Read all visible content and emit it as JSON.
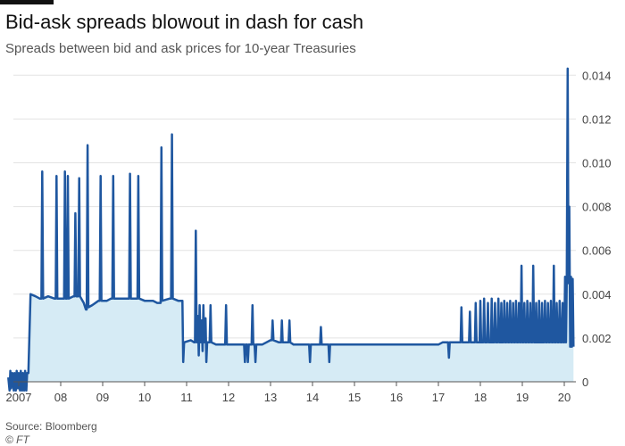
{
  "header": {
    "title": "Bid-ask spreads blowout in dash for cash",
    "subtitle": "Spreads between bid and ask prices for 10-year Treasuries"
  },
  "footer": {
    "source": "Source: Bloomberg",
    "copyright": "© FT"
  },
  "colors": {
    "line": "#1f57a0",
    "fill": "#d6ebf5",
    "grid": "#e3e3e3",
    "axis": "#555555"
  },
  "chart_data": {
    "type": "line",
    "title": "Bid-ask spreads blowout in dash for cash",
    "subtitle": "Spreads between bid and ask prices for 10-year Treasuries",
    "xlabel": "",
    "ylabel": "",
    "y_axis_position": "right",
    "grid": true,
    "legend": "none",
    "xlim": [
      2007.0,
      2020.3
    ],
    "ylim": [
      0,
      0.0145
    ],
    "x_ticks": [
      {
        "x": 2007.0,
        "label": "2007"
      },
      {
        "x": 2008.0,
        "label": "08"
      },
      {
        "x": 2009.0,
        "label": "09"
      },
      {
        "x": 2010.0,
        "label": "10"
      },
      {
        "x": 2011.0,
        "label": "11"
      },
      {
        "x": 2012.0,
        "label": "12"
      },
      {
        "x": 2013.0,
        "label": "13"
      },
      {
        "x": 2014.0,
        "label": "14"
      },
      {
        "x": 2015.0,
        "label": "15"
      },
      {
        "x": 2016.0,
        "label": "16"
      },
      {
        "x": 2017.0,
        "label": "17"
      },
      {
        "x": 2018.0,
        "label": "18"
      },
      {
        "x": 2019.0,
        "label": "19"
      },
      {
        "x": 2020.0,
        "label": "20"
      }
    ],
    "y_ticks": [
      {
        "y": 0,
        "label": "0"
      },
      {
        "y": 0.002,
        "label": "0.002"
      },
      {
        "y": 0.004,
        "label": "0.004"
      },
      {
        "y": 0.006,
        "label": "0.006"
      },
      {
        "y": 0.008,
        "label": "0.008"
      },
      {
        "y": 0.01,
        "label": "0.010"
      },
      {
        "y": 0.012,
        "label": "0.012"
      },
      {
        "y": 0.014,
        "label": "0.014"
      }
    ],
    "series": [
      {
        "name": "",
        "points": [
          [
            2006.75,
            0.0002
          ],
          [
            2006.78,
            -0.0004
          ],
          [
            2006.8,
            0.0005
          ],
          [
            2006.82,
            -0.0003
          ],
          [
            2006.85,
            0.0004
          ],
          [
            2006.88,
            -0.0004
          ],
          [
            2006.9,
            0.0004
          ],
          [
            2006.93,
            -0.0004
          ],
          [
            2006.95,
            0.0005
          ],
          [
            2006.98,
            -0.0003
          ],
          [
            2007.0,
            0.0004
          ],
          [
            2007.03,
            -0.0004
          ],
          [
            2007.05,
            0.0005
          ],
          [
            2007.08,
            -0.0004
          ],
          [
            2007.1,
            0.0004
          ],
          [
            2007.13,
            -0.0004
          ],
          [
            2007.15,
            0.0005
          ],
          [
            2007.18,
            -0.0004
          ],
          [
            2007.2,
            0.0004
          ],
          [
            2007.23,
            0.0004
          ],
          [
            2007.28,
            0.004
          ],
          [
            2007.4,
            0.0039
          ],
          [
            2007.5,
            0.0038
          ],
          [
            2007.54,
            0.0038
          ],
          [
            2007.56,
            0.0096
          ],
          [
            2007.58,
            0.0038
          ],
          [
            2007.7,
            0.0039
          ],
          [
            2007.85,
            0.0038
          ],
          [
            2007.88,
            0.0038
          ],
          [
            2007.9,
            0.0094
          ],
          [
            2007.92,
            0.0038
          ],
          [
            2008.05,
            0.0038
          ],
          [
            2008.08,
            0.0038
          ],
          [
            2008.1,
            0.0096
          ],
          [
            2008.12,
            0.0038
          ],
          [
            2008.15,
            0.0038
          ],
          [
            2008.17,
            0.0094
          ],
          [
            2008.19,
            0.0038
          ],
          [
            2008.3,
            0.0039
          ],
          [
            2008.33,
            0.0039
          ],
          [
            2008.35,
            0.0077
          ],
          [
            2008.37,
            0.0039
          ],
          [
            2008.42,
            0.0039
          ],
          [
            2008.44,
            0.0093
          ],
          [
            2008.46,
            0.0039
          ],
          [
            2008.55,
            0.0036
          ],
          [
            2008.6,
            0.0033
          ],
          [
            2008.62,
            0.0033
          ],
          [
            2008.64,
            0.0108
          ],
          [
            2008.66,
            0.0034
          ],
          [
            2008.75,
            0.0035
          ],
          [
            2008.9,
            0.0037
          ],
          [
            2008.93,
            0.0037
          ],
          [
            2008.95,
            0.0094
          ],
          [
            2008.97,
            0.0037
          ],
          [
            2009.1,
            0.0037
          ],
          [
            2009.2,
            0.0038
          ],
          [
            2009.23,
            0.0038
          ],
          [
            2009.25,
            0.0094
          ],
          [
            2009.27,
            0.0038
          ],
          [
            2009.4,
            0.0038
          ],
          [
            2009.6,
            0.0038
          ],
          [
            2009.63,
            0.0038
          ],
          [
            2009.65,
            0.0095
          ],
          [
            2009.67,
            0.0038
          ],
          [
            2009.8,
            0.0038
          ],
          [
            2009.83,
            0.0038
          ],
          [
            2009.85,
            0.0094
          ],
          [
            2009.87,
            0.0038
          ],
          [
            2010.0,
            0.0037
          ],
          [
            2010.2,
            0.0037
          ],
          [
            2010.3,
            0.0036
          ],
          [
            2010.35,
            0.0036
          ],
          [
            2010.38,
            0.0036
          ],
          [
            2010.4,
            0.0107
          ],
          [
            2010.42,
            0.0037
          ],
          [
            2010.6,
            0.0038
          ],
          [
            2010.63,
            0.0038
          ],
          [
            2010.65,
            0.0113
          ],
          [
            2010.67,
            0.0038
          ],
          [
            2010.8,
            0.0037
          ],
          [
            2010.9,
            0.0037
          ],
          [
            2010.92,
            0.0009
          ],
          [
            2010.94,
            0.0018
          ],
          [
            2011.1,
            0.0019
          ],
          [
            2011.18,
            0.0018
          ],
          [
            2011.2,
            0.0018
          ],
          [
            2011.22,
            0.0069
          ],
          [
            2011.24,
            0.0018
          ],
          [
            2011.27,
            0.003
          ],
          [
            2011.29,
            0.0012
          ],
          [
            2011.31,
            0.0035
          ],
          [
            2011.33,
            0.0018
          ],
          [
            2011.36,
            0.0028
          ],
          [
            2011.38,
            0.0014
          ],
          [
            2011.4,
            0.0035
          ],
          [
            2011.42,
            0.0018
          ],
          [
            2011.45,
            0.0029
          ],
          [
            2011.47,
            0.0009
          ],
          [
            2011.49,
            0.0018
          ],
          [
            2011.55,
            0.0018
          ],
          [
            2011.57,
            0.0035
          ],
          [
            2011.59,
            0.0018
          ],
          [
            2011.7,
            0.0017
          ],
          [
            2011.9,
            0.0017
          ],
          [
            2011.92,
            0.0017
          ],
          [
            2011.94,
            0.0035
          ],
          [
            2011.96,
            0.0017
          ],
          [
            2012.15,
            0.0017
          ],
          [
            2012.35,
            0.0017
          ],
          [
            2012.37,
            0.0017
          ],
          [
            2012.39,
            0.0009
          ],
          [
            2012.41,
            0.0017
          ],
          [
            2012.44,
            0.0017
          ],
          [
            2012.46,
            0.0009
          ],
          [
            2012.48,
            0.0017
          ],
          [
            2012.55,
            0.0017
          ],
          [
            2012.57,
            0.0035
          ],
          [
            2012.59,
            0.0017
          ],
          [
            2012.62,
            0.0017
          ],
          [
            2012.64,
            0.0009
          ],
          [
            2012.66,
            0.0017
          ],
          [
            2012.8,
            0.0017
          ],
          [
            2013.0,
            0.0019
          ],
          [
            2013.03,
            0.0019
          ],
          [
            2013.05,
            0.0028
          ],
          [
            2013.07,
            0.0019
          ],
          [
            2013.2,
            0.0018
          ],
          [
            2013.25,
            0.0018
          ],
          [
            2013.27,
            0.0028
          ],
          [
            2013.29,
            0.0018
          ],
          [
            2013.4,
            0.0018
          ],
          [
            2013.43,
            0.0018
          ],
          [
            2013.45,
            0.0028
          ],
          [
            2013.47,
            0.0018
          ],
          [
            2013.55,
            0.0017
          ],
          [
            2013.9,
            0.0017
          ],
          [
            2013.92,
            0.0017
          ],
          [
            2013.94,
            0.0009
          ],
          [
            2013.96,
            0.0017
          ],
          [
            2014.15,
            0.0017
          ],
          [
            2014.18,
            0.0017
          ],
          [
            2014.2,
            0.0025
          ],
          [
            2014.22,
            0.0017
          ],
          [
            2014.35,
            0.0017
          ],
          [
            2014.38,
            0.0017
          ],
          [
            2014.4,
            0.0009
          ],
          [
            2014.42,
            0.0017
          ],
          [
            2014.6,
            0.0017
          ],
          [
            2015.0,
            0.0017
          ],
          [
            2015.5,
            0.0017
          ],
          [
            2016.0,
            0.0017
          ],
          [
            2016.5,
            0.0017
          ],
          [
            2016.9,
            0.0017
          ],
          [
            2017.0,
            0.0017
          ],
          [
            2017.1,
            0.0018
          ],
          [
            2017.2,
            0.0018
          ],
          [
            2017.23,
            0.0018
          ],
          [
            2017.25,
            0.0011
          ],
          [
            2017.27,
            0.0018
          ],
          [
            2017.5,
            0.0018
          ],
          [
            2017.53,
            0.0018
          ],
          [
            2017.55,
            0.0034
          ],
          [
            2017.57,
            0.0018
          ],
          [
            2017.7,
            0.0018
          ],
          [
            2017.73,
            0.0018
          ],
          [
            2017.75,
            0.0032
          ],
          [
            2017.77,
            0.0018
          ],
          [
            2017.85,
            0.0018
          ],
          [
            2017.87,
            0.0018
          ],
          [
            2017.89,
            0.0036
          ],
          [
            2017.91,
            0.0018
          ],
          [
            2017.98,
            0.0018
          ],
          [
            2018.0,
            0.0037
          ],
          [
            2018.02,
            0.0018
          ],
          [
            2018.07,
            0.0018
          ],
          [
            2018.09,
            0.0038
          ],
          [
            2018.11,
            0.0018
          ],
          [
            2018.16,
            0.0018
          ],
          [
            2018.18,
            0.0036
          ],
          [
            2018.2,
            0.0018
          ],
          [
            2018.25,
            0.0018
          ],
          [
            2018.27,
            0.0038
          ],
          [
            2018.29,
            0.0018
          ],
          [
            2018.33,
            0.0018
          ],
          [
            2018.35,
            0.0036
          ],
          [
            2018.37,
            0.0018
          ],
          [
            2018.41,
            0.0018
          ],
          [
            2018.43,
            0.0038
          ],
          [
            2018.45,
            0.0018
          ],
          [
            2018.48,
            0.0018
          ],
          [
            2018.5,
            0.0036
          ],
          [
            2018.52,
            0.0018
          ],
          [
            2018.55,
            0.0018
          ],
          [
            2018.57,
            0.0037
          ],
          [
            2018.59,
            0.0018
          ],
          [
            2018.62,
            0.0018
          ],
          [
            2018.64,
            0.0036
          ],
          [
            2018.66,
            0.0018
          ],
          [
            2018.69,
            0.0018
          ],
          [
            2018.71,
            0.0037
          ],
          [
            2018.73,
            0.0018
          ],
          [
            2018.76,
            0.0018
          ],
          [
            2018.78,
            0.0036
          ],
          [
            2018.8,
            0.0018
          ],
          [
            2018.83,
            0.0018
          ],
          [
            2018.85,
            0.0037
          ],
          [
            2018.87,
            0.0018
          ],
          [
            2018.9,
            0.0018
          ],
          [
            2018.92,
            0.0036
          ],
          [
            2018.94,
            0.0018
          ],
          [
            2018.96,
            0.0018
          ],
          [
            2018.98,
            0.0053
          ],
          [
            2019.0,
            0.0018
          ],
          [
            2019.03,
            0.0018
          ],
          [
            2019.05,
            0.0036
          ],
          [
            2019.07,
            0.0018
          ],
          [
            2019.1,
            0.0018
          ],
          [
            2019.12,
            0.0037
          ],
          [
            2019.14,
            0.0018
          ],
          [
            2019.17,
            0.0018
          ],
          [
            2019.19,
            0.0036
          ],
          [
            2019.21,
            0.0018
          ],
          [
            2019.24,
            0.0018
          ],
          [
            2019.26,
            0.0053
          ],
          [
            2019.28,
            0.0018
          ],
          [
            2019.31,
            0.0018
          ],
          [
            2019.33,
            0.0036
          ],
          [
            2019.35,
            0.0018
          ],
          [
            2019.38,
            0.0018
          ],
          [
            2019.4,
            0.0037
          ],
          [
            2019.42,
            0.0018
          ],
          [
            2019.45,
            0.0018
          ],
          [
            2019.47,
            0.0036
          ],
          [
            2019.49,
            0.0018
          ],
          [
            2019.52,
            0.0018
          ],
          [
            2019.54,
            0.0037
          ],
          [
            2019.56,
            0.0018
          ],
          [
            2019.59,
            0.0018
          ],
          [
            2019.61,
            0.0036
          ],
          [
            2019.63,
            0.0018
          ],
          [
            2019.66,
            0.0018
          ],
          [
            2019.68,
            0.0037
          ],
          [
            2019.7,
            0.0018
          ],
          [
            2019.73,
            0.0018
          ],
          [
            2019.75,
            0.0053
          ],
          [
            2019.77,
            0.0018
          ],
          [
            2019.8,
            0.0018
          ],
          [
            2019.82,
            0.0036
          ],
          [
            2019.84,
            0.0018
          ],
          [
            2019.87,
            0.0018
          ],
          [
            2019.89,
            0.0037
          ],
          [
            2019.91,
            0.0018
          ],
          [
            2019.94,
            0.0018
          ],
          [
            2019.96,
            0.0036
          ],
          [
            2019.98,
            0.0018
          ],
          [
            2020.0,
            0.0018
          ],
          [
            2020.02,
            0.0048
          ],
          [
            2020.04,
            0.0018
          ],
          [
            2020.06,
            0.0048
          ],
          [
            2020.08,
            0.0143
          ],
          [
            2020.1,
            0.0045
          ],
          [
            2020.12,
            0.008
          ],
          [
            2020.14,
            0.0016
          ],
          [
            2020.16,
            0.0048
          ],
          [
            2020.18,
            0.0016
          ],
          [
            2020.2,
            0.0047
          ],
          [
            2020.22,
            0.0016
          ]
        ]
      }
    ]
  }
}
